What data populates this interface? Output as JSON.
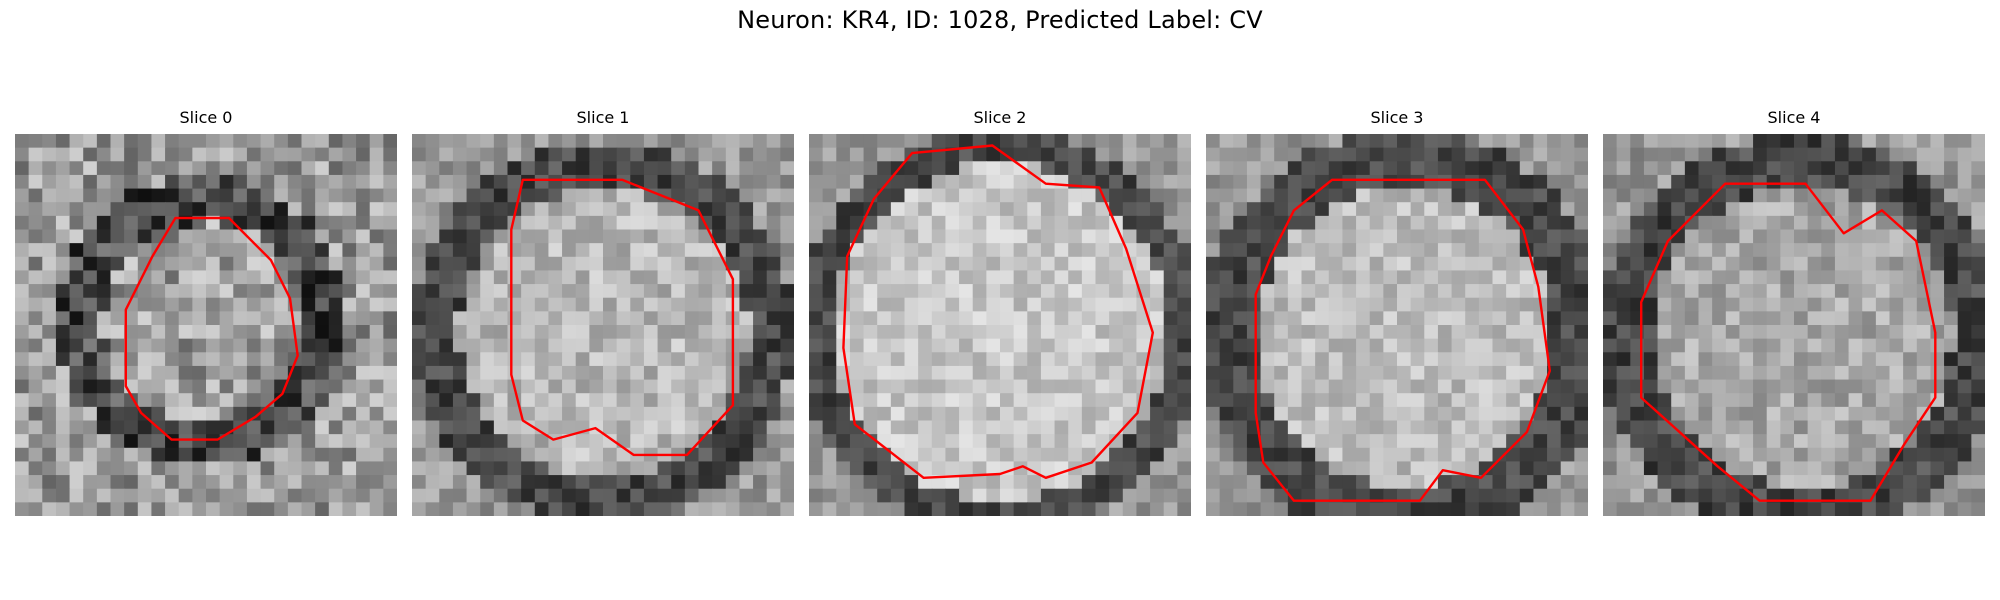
{
  "figure": {
    "title": "Neuron: KR4, ID: 1028, Predicted Label: CV",
    "panels": [
      {
        "label": "Slice 0"
      },
      {
        "label": "Slice 1"
      },
      {
        "label": "Slice 2"
      },
      {
        "label": "Slice 3"
      },
      {
        "label": "Slice 4"
      }
    ],
    "contour_color": "#ff0000",
    "colormap": "grayscale"
  }
}
